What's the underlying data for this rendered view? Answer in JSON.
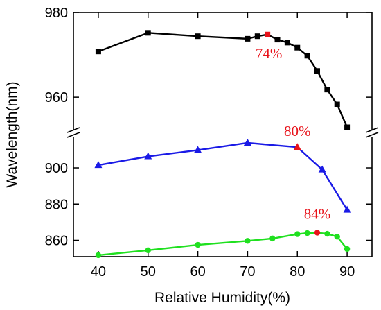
{
  "chart_data": {
    "type": "line",
    "xlabel": "Relative Humidity(%)",
    "ylabel": "Wavelength(nm)",
    "xlim": [
      35,
      95
    ],
    "x_ticks": [
      40,
      50,
      60,
      70,
      80,
      90
    ],
    "y_axis_break": true,
    "y_segments": [
      {
        "range": [
          952,
          980
        ],
        "ticks": [
          960,
          980
        ]
      },
      {
        "range": [
          851,
          918
        ],
        "ticks": [
          860,
          880,
          900
        ]
      }
    ],
    "grid": false,
    "legend": "none",
    "series": [
      {
        "color": "#000000",
        "marker": "square",
        "segment": 0,
        "points": [
          [
            40,
            970.8
          ],
          [
            50,
            975.2
          ],
          [
            60,
            974.4
          ],
          [
            70,
            973.8
          ],
          [
            72,
            974.4
          ],
          [
            74,
            974.8
          ],
          [
            76,
            973.6
          ],
          [
            78,
            972.9
          ],
          [
            80,
            971.7
          ],
          [
            82,
            969.8
          ],
          [
            84,
            966.2
          ],
          [
            86,
            961.8
          ],
          [
            88,
            958.3
          ],
          [
            90,
            952.9
          ]
        ],
        "highlight": {
          "x": 74,
          "y": 974.8,
          "label": "74%"
        }
      },
      {
        "color": "#1a1ae6",
        "marker": "triangle",
        "segment": 1,
        "points": [
          [
            40,
            901.5
          ],
          [
            50,
            906.3
          ],
          [
            60,
            909.8
          ],
          [
            70,
            913.8
          ],
          [
            80,
            911.4
          ],
          [
            85,
            899.0
          ],
          [
            90,
            876.8
          ]
        ],
        "highlight": {
          "x": 80,
          "y": 911.4,
          "label": "80%"
        }
      },
      {
        "color": "#1fe01f",
        "marker": "circle",
        "segment": 1,
        "points": [
          [
            40,
            851.8
          ],
          [
            50,
            854.5
          ],
          [
            60,
            857.5
          ],
          [
            70,
            859.7
          ],
          [
            75,
            861.0
          ],
          [
            80,
            863.4
          ],
          [
            82,
            864.0
          ],
          [
            84,
            864.2
          ],
          [
            86,
            863.6
          ],
          [
            88,
            862.0
          ],
          [
            90,
            855.2
          ]
        ],
        "highlight": {
          "x": 84,
          "y": 864.2,
          "label": "84%"
        }
      }
    ]
  }
}
